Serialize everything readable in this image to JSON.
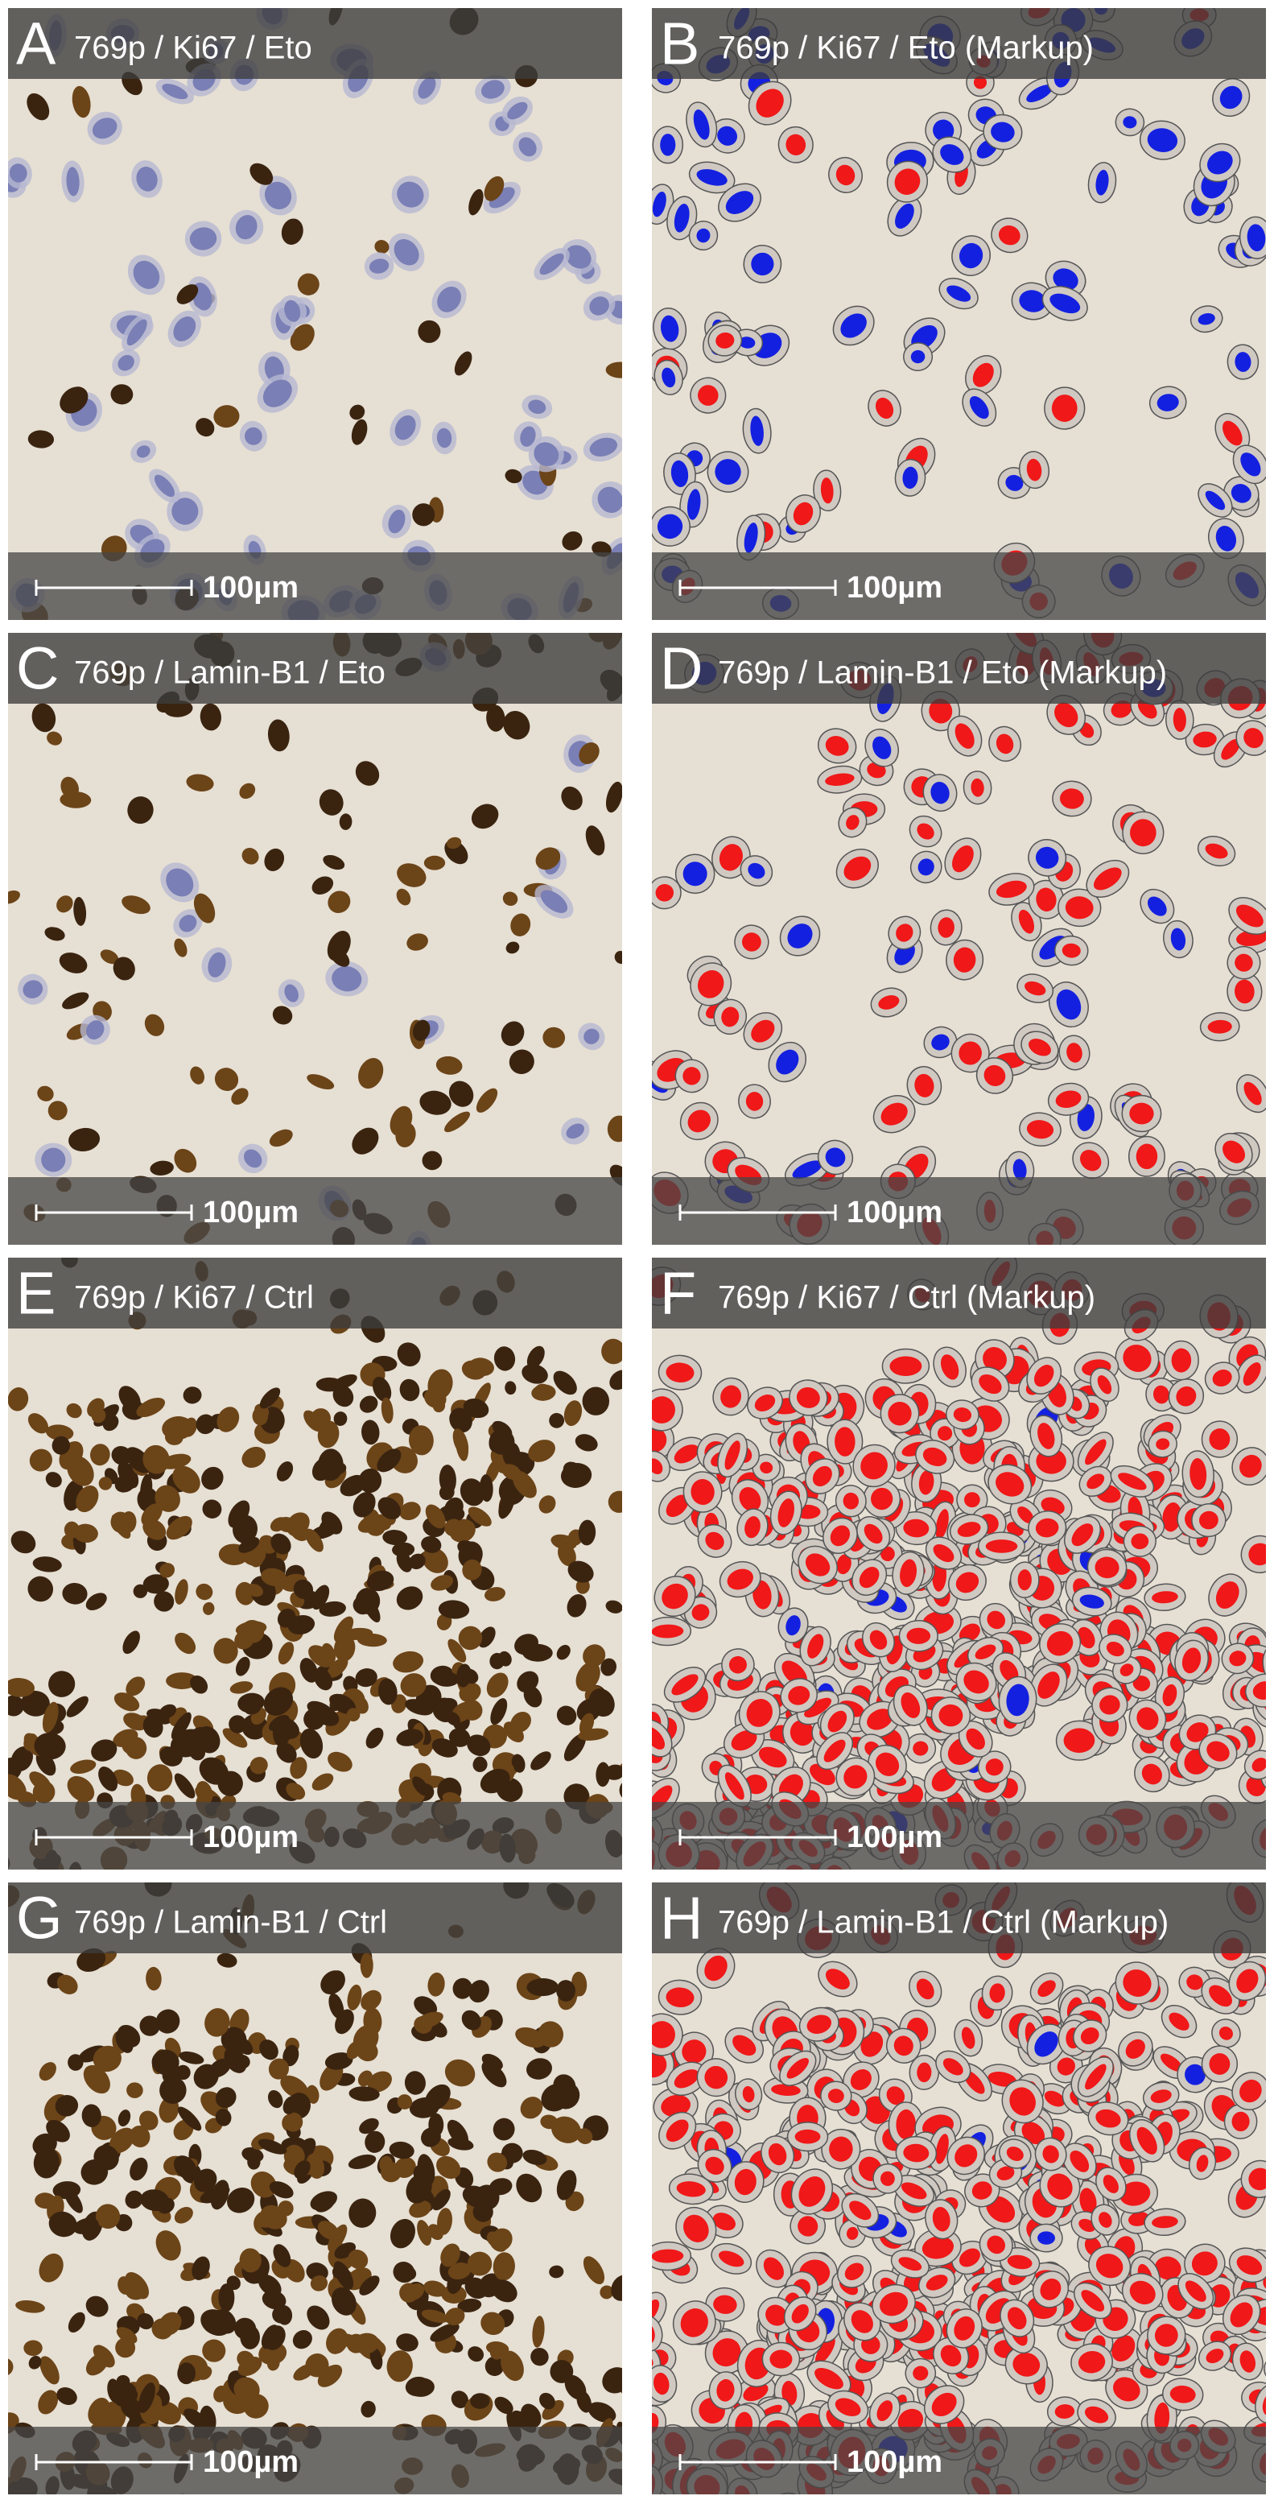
{
  "panels": [
    {
      "letter": "A",
      "title": "769p / Ki67 / Eto",
      "scale_label": "100µm"
    },
    {
      "letter": "B",
      "title": "769p / Ki67 / Eto (Markup)",
      "scale_label": "100µm"
    },
    {
      "letter": "C",
      "title": "769p / Lamin-B1 / Eto",
      "scale_label": "100µm"
    },
    {
      "letter": "D",
      "title": "769p / Lamin-B1 / Eto (Markup)",
      "scale_label": "100µm"
    },
    {
      "letter": "E",
      "title": "769p / Ki67 / Ctrl",
      "scale_label": "100µm"
    },
    {
      "letter": "F",
      "title": "769p / Ki67 / Ctrl (Markup)",
      "scale_label": "100µm"
    },
    {
      "letter": "G",
      "title": "769p / Lamin-B1 / Ctrl",
      "scale_label": "100µm"
    },
    {
      "letter": "H",
      "title": "769p / Lamin-B1 / Ctrl (Markup)",
      "scale_label": "100µm"
    }
  ]
}
